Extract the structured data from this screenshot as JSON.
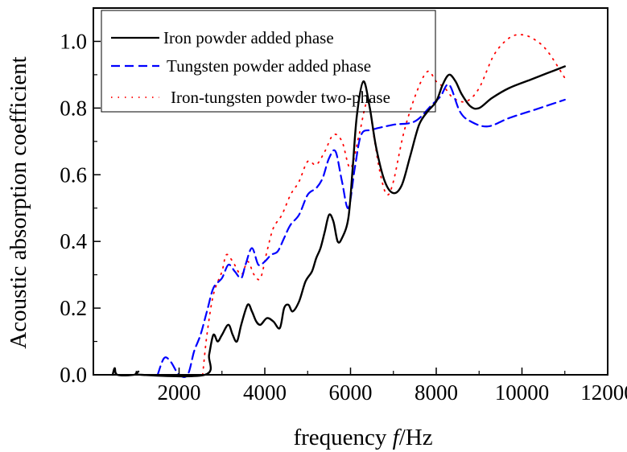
{
  "chart_data": {
    "type": "line",
    "title": "",
    "xlabel": "frequency",
    "xlabel_symbol": "f",
    "xlabel_unit": "/Hz",
    "ylabel": "Acoustic absorption coefficient",
    "xlim": [
      0,
      12000
    ],
    "ylim": [
      0,
      1.1
    ],
    "xticks": [
      2000,
      4000,
      6000,
      8000,
      10000,
      12000
    ],
    "xtick_labels": [
      "2000",
      "4000",
      "6000",
      "8000",
      "10000",
      "12000"
    ],
    "yticks": [
      0,
      0.2,
      0.4,
      0.6,
      0.8,
      1.0
    ],
    "ytick_labels": [
      "0.0",
      "0.2",
      "0.4",
      "0.6",
      "0.8",
      "1.0"
    ],
    "grid": false,
    "legend_position": "top-left",
    "series": [
      {
        "name": "Iron powder added phase",
        "color": "#000000",
        "style": "solid",
        "points": [
          [
            450,
            0
          ],
          [
            500,
            0.02
          ],
          [
            560,
            0
          ],
          [
            950,
            0
          ],
          [
            1050,
            0.01
          ],
          [
            1120,
            0
          ],
          [
            2600,
            0
          ],
          [
            2700,
            0.06
          ],
          [
            2800,
            0.12
          ],
          [
            2900,
            0.1
          ],
          [
            3000,
            0.12
          ],
          [
            3150,
            0.15
          ],
          [
            3250,
            0.12
          ],
          [
            3350,
            0.1
          ],
          [
            3450,
            0.15
          ],
          [
            3600,
            0.21
          ],
          [
            3700,
            0.19
          ],
          [
            3800,
            0.16
          ],
          [
            3900,
            0.15
          ],
          [
            4050,
            0.17
          ],
          [
            4200,
            0.16
          ],
          [
            4350,
            0.14
          ],
          [
            4450,
            0.2
          ],
          [
            4550,
            0.21
          ],
          [
            4650,
            0.19
          ],
          [
            4800,
            0.22
          ],
          [
            4950,
            0.28
          ],
          [
            5100,
            0.31
          ],
          [
            5200,
            0.35
          ],
          [
            5300,
            0.38
          ],
          [
            5400,
            0.43
          ],
          [
            5500,
            0.48
          ],
          [
            5600,
            0.46
          ],
          [
            5700,
            0.4
          ],
          [
            5800,
            0.41
          ],
          [
            5950,
            0.47
          ],
          [
            6050,
            0.62
          ],
          [
            6150,
            0.78
          ],
          [
            6300,
            0.88
          ],
          [
            6450,
            0.8
          ],
          [
            6600,
            0.68
          ],
          [
            6800,
            0.58
          ],
          [
            7000,
            0.545
          ],
          [
            7200,
            0.57
          ],
          [
            7400,
            0.66
          ],
          [
            7600,
            0.75
          ],
          [
            7800,
            0.79
          ],
          [
            8000,
            0.82
          ],
          [
            8150,
            0.87
          ],
          [
            8300,
            0.9
          ],
          [
            8450,
            0.88
          ],
          [
            8600,
            0.84
          ],
          [
            8800,
            0.805
          ],
          [
            9000,
            0.8
          ],
          [
            9300,
            0.83
          ],
          [
            9700,
            0.86
          ],
          [
            10200,
            0.885
          ],
          [
            10600,
            0.905
          ],
          [
            11000,
            0.925
          ]
        ]
      },
      {
        "name": "Tungsten powder added phase",
        "color": "#0000ff",
        "style": "dashed",
        "points": [
          [
            1500,
            0
          ],
          [
            1650,
            0.05
          ],
          [
            1800,
            0.04
          ],
          [
            2000,
            0
          ],
          [
            2200,
            0
          ],
          [
            2350,
            0.07
          ],
          [
            2500,
            0.12
          ],
          [
            2650,
            0.19
          ],
          [
            2800,
            0.26
          ],
          [
            3000,
            0.29
          ],
          [
            3150,
            0.33
          ],
          [
            3300,
            0.31
          ],
          [
            3450,
            0.29
          ],
          [
            3550,
            0.33
          ],
          [
            3700,
            0.38
          ],
          [
            3850,
            0.33
          ],
          [
            4000,
            0.34
          ],
          [
            4150,
            0.36
          ],
          [
            4300,
            0.37
          ],
          [
            4450,
            0.41
          ],
          [
            4600,
            0.45
          ],
          [
            4800,
            0.48
          ],
          [
            5000,
            0.54
          ],
          [
            5200,
            0.56
          ],
          [
            5350,
            0.59
          ],
          [
            5500,
            0.65
          ],
          [
            5650,
            0.67
          ],
          [
            5800,
            0.58
          ],
          [
            5950,
            0.5
          ],
          [
            6100,
            0.62
          ],
          [
            6250,
            0.72
          ],
          [
            6500,
            0.735
          ],
          [
            7000,
            0.75
          ],
          [
            7500,
            0.76
          ],
          [
            7900,
            0.81
          ],
          [
            8100,
            0.835
          ],
          [
            8300,
            0.87
          ],
          [
            8550,
            0.79
          ],
          [
            8800,
            0.76
          ],
          [
            9200,
            0.745
          ],
          [
            9700,
            0.77
          ],
          [
            10300,
            0.795
          ],
          [
            11000,
            0.825
          ]
        ]
      },
      {
        "name": "Iron-tungsten powder two-phase",
        "color": "#ff0000",
        "style": "dotted",
        "points": [
          [
            2550,
            0
          ],
          [
            2650,
            0.12
          ],
          [
            2800,
            0.24
          ],
          [
            3000,
            0.31
          ],
          [
            3100,
            0.36
          ],
          [
            3250,
            0.34
          ],
          [
            3450,
            0.3
          ],
          [
            3600,
            0.34
          ],
          [
            3750,
            0.3
          ],
          [
            3900,
            0.29
          ],
          [
            4050,
            0.37
          ],
          [
            4200,
            0.44
          ],
          [
            4400,
            0.48
          ],
          [
            4600,
            0.54
          ],
          [
            4800,
            0.58
          ],
          [
            5000,
            0.64
          ],
          [
            5200,
            0.63
          ],
          [
            5400,
            0.67
          ],
          [
            5600,
            0.72
          ],
          [
            5800,
            0.7
          ],
          [
            6000,
            0.62
          ],
          [
            6200,
            0.72
          ],
          [
            6400,
            0.82
          ],
          [
            6550,
            0.71
          ],
          [
            6700,
            0.6
          ],
          [
            6850,
            0.54
          ],
          [
            7000,
            0.58
          ],
          [
            7250,
            0.73
          ],
          [
            7550,
            0.85
          ],
          [
            7800,
            0.91
          ],
          [
            8000,
            0.88
          ],
          [
            8200,
            0.86
          ],
          [
            8400,
            0.83
          ],
          [
            8700,
            0.82
          ],
          [
            9000,
            0.86
          ],
          [
            9350,
            0.96
          ],
          [
            9700,
            1.01
          ],
          [
            10000,
            1.02
          ],
          [
            10300,
            1.005
          ],
          [
            10600,
            0.97
          ],
          [
            11000,
            0.89
          ]
        ]
      }
    ]
  }
}
